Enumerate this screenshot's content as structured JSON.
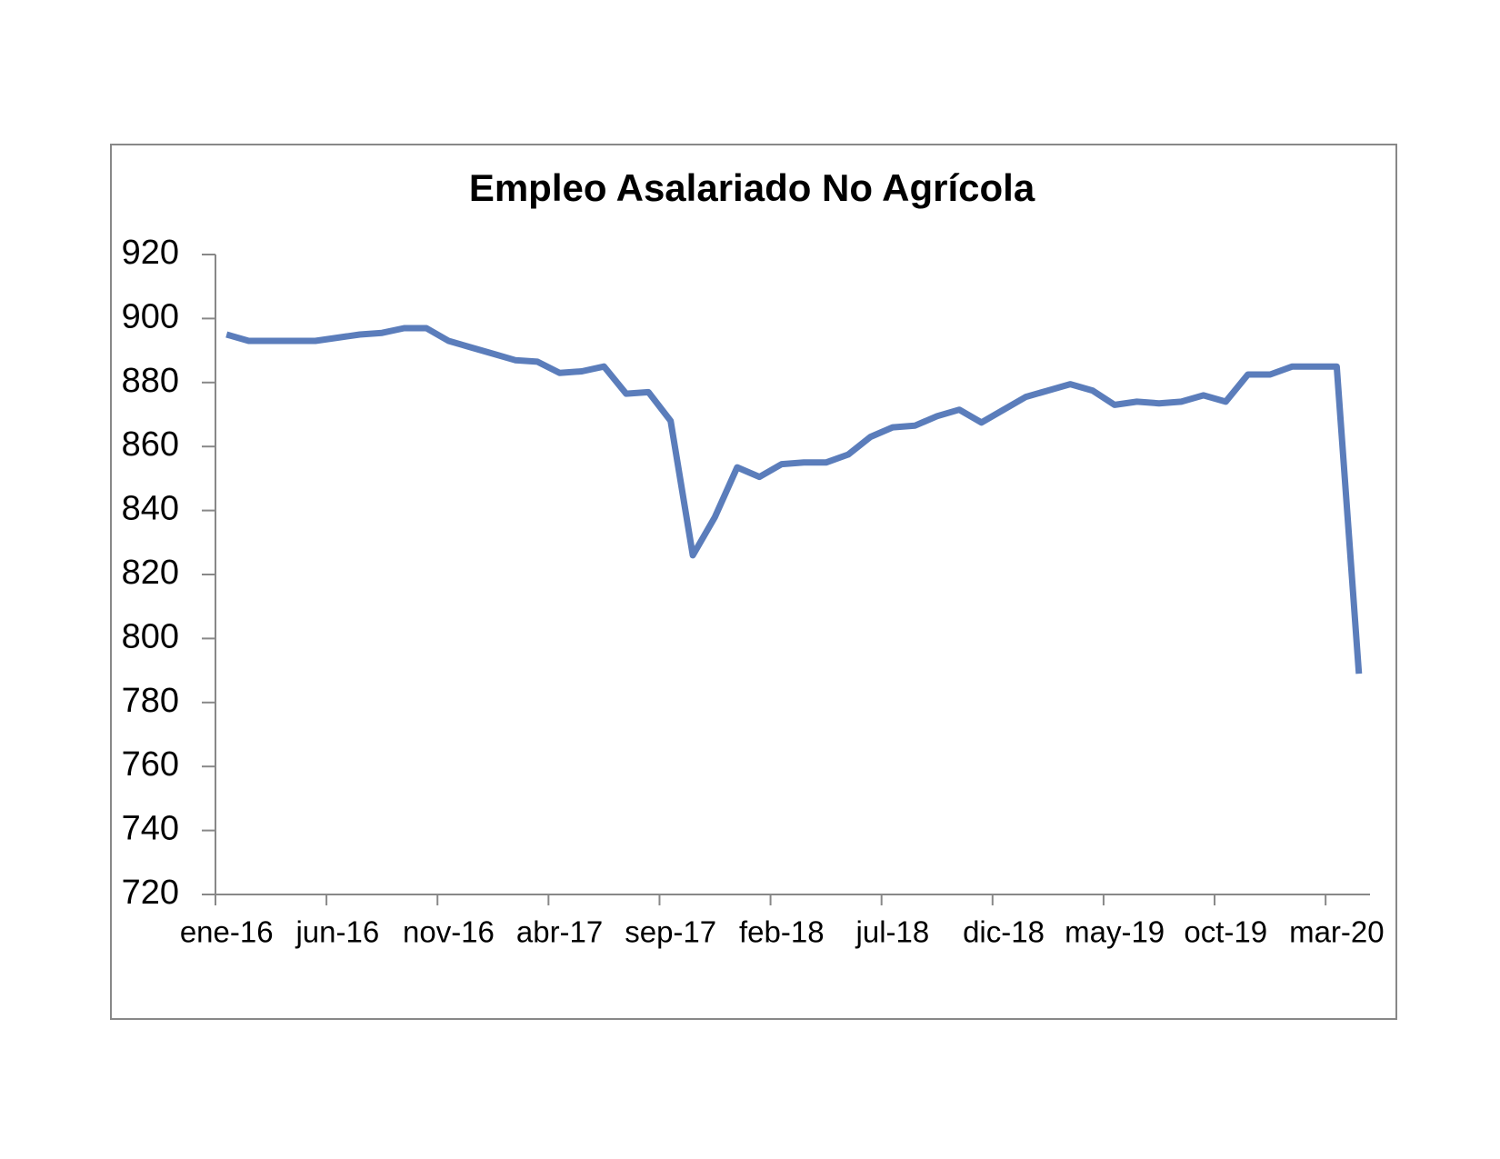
{
  "chart_data": {
    "type": "line",
    "title": "Empleo Asalariado No Agrícola",
    "categories": [
      "ene-16",
      null,
      null,
      null,
      null,
      "jun-16",
      null,
      null,
      null,
      null,
      "nov-16",
      null,
      null,
      null,
      null,
      "abr-17",
      null,
      null,
      null,
      null,
      "sep-17",
      null,
      null,
      null,
      null,
      "feb-18",
      null,
      null,
      null,
      null,
      "jul-18",
      null,
      null,
      null,
      null,
      "dic-18",
      null,
      null,
      null,
      null,
      "may-19",
      null,
      null,
      null,
      null,
      "oct-19",
      null,
      null,
      null,
      null,
      "mar-20",
      null
    ],
    "values": [
      895,
      893,
      893,
      893,
      893,
      894,
      895,
      895.5,
      897,
      897,
      893,
      891,
      889,
      887,
      886.5,
      883,
      883.5,
      885,
      876.5,
      877,
      868,
      826,
      838,
      853.5,
      850.5,
      854.5,
      855,
      855,
      857.5,
      863,
      866,
      866.5,
      869.5,
      871.5,
      867.5,
      871.5,
      875.5,
      877.5,
      879.5,
      877.5,
      873,
      874,
      873.5,
      874,
      876,
      874,
      882.5,
      882.5,
      885,
      885,
      885,
      789
    ],
    "color": "#5b7dbb",
    "ylim": [
      720,
      920
    ],
    "yticks": [
      720,
      740,
      760,
      780,
      800,
      820,
      840,
      860,
      880,
      900,
      920
    ],
    "grid": false
  }
}
